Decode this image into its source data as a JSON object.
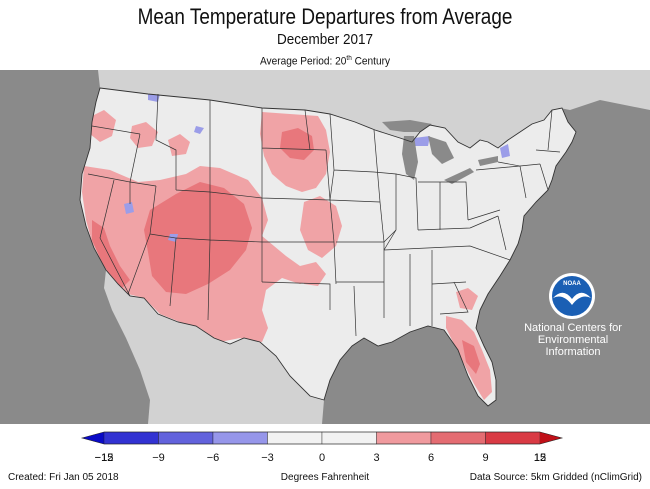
{
  "header": {
    "title": "Mean Temperature Departures from Average",
    "subtitle": "December 2017",
    "period_prefix": "Average Period: 20",
    "period_sup": "th",
    "period_suffix": " Century"
  },
  "map": {
    "region": "Contiguous United States",
    "colors": {
      "ocean": "#8a8a8a",
      "land_neighbors": "#d2d2d2",
      "near_average": "#ececec",
      "warm_3_6": "#f0a3a6",
      "warm_6_9": "#e8777c",
      "cool_3_6": "#9b9de8",
      "state_border": "#333333",
      "lakes": "#8a8a8a"
    }
  },
  "logo": {
    "text": "NOAA",
    "icon": "noaa-logo-icon",
    "line1": "National Centers for",
    "line2": "Environmental",
    "line3": "Information"
  },
  "legend": {
    "ticks": [
      "−15",
      "−12",
      "−9",
      "−6",
      "−3",
      "0",
      "3",
      "6",
      "9",
      "12",
      "15"
    ],
    "colors": [
      "#0a0ac6",
      "#3232d2",
      "#6262dc",
      "#9696ea",
      "#f2f2f2",
      "#f2f2f2",
      "#f09a9e",
      "#e46c72",
      "#d93a44",
      "#c01018"
    ],
    "units": "Degrees Fahrenheit"
  },
  "footer": {
    "created": "Created: Fri Jan 05 2018",
    "source": "Data Source: 5km Gridded (nClimGrid)"
  }
}
